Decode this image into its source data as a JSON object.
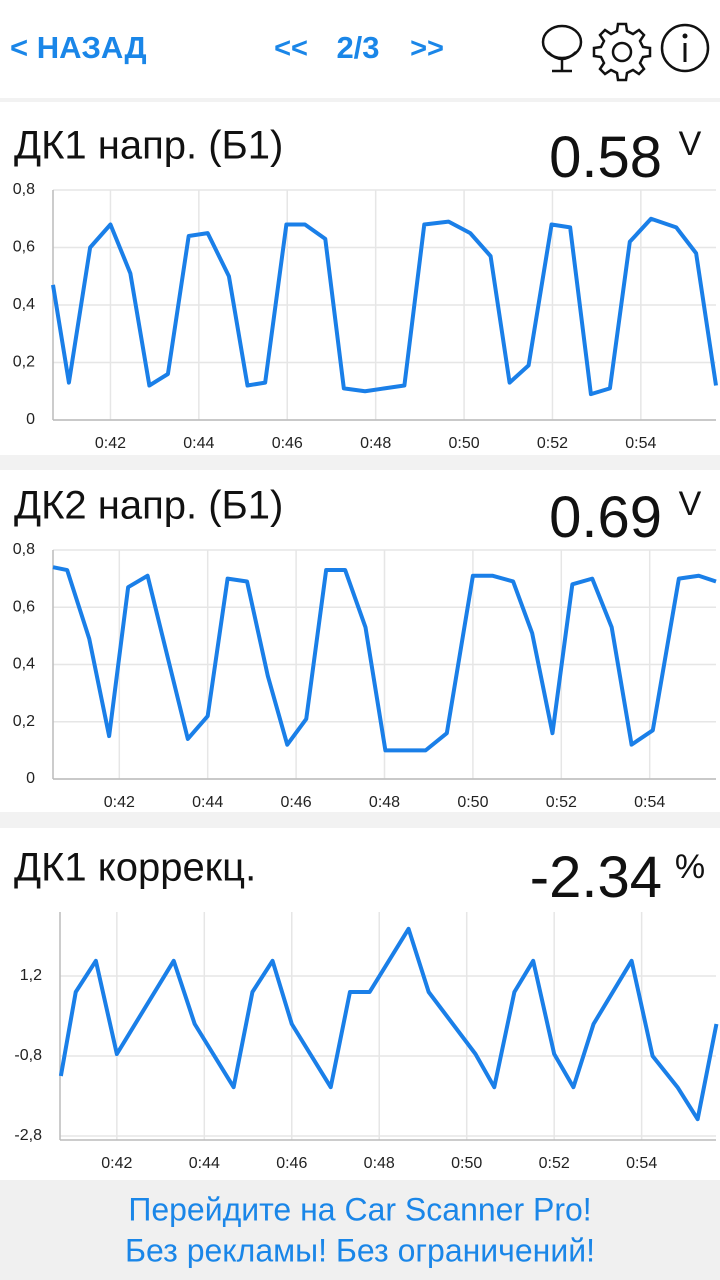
{
  "header": {
    "back": "< НАЗАД",
    "prev": "<<",
    "page": "2/3",
    "next": ">>"
  },
  "chart_data": [
    {
      "type": "line",
      "title": "ДК1 напр. (Б1)",
      "current_value": 0.58,
      "unit": "V",
      "x": [
        40.7,
        41.06,
        41.54,
        42,
        42.45,
        42.88,
        43.3,
        43.77,
        44.2,
        44.68,
        45.1,
        45.5,
        45.98,
        46.4,
        46.86,
        47.28,
        47.76,
        48.2,
        48.65,
        49.1,
        49.65,
        50.14,
        50.6,
        51.03,
        51.46,
        51.98,
        52.4,
        52.87,
        53.3,
        53.75,
        54.23,
        54.8,
        55.25,
        55.7
      ],
      "series": [
        {
          "color": "#1a7fe8",
          "values": [
            0.47,
            0.13,
            0.6,
            0.68,
            0.51,
            0.12,
            0.16,
            0.64,
            0.65,
            0.5,
            0.12,
            0.13,
            0.68,
            0.68,
            0.63,
            0.11,
            0.1,
            0.11,
            0.12,
            0.68,
            0.69,
            0.65,
            0.57,
            0.13,
            0.19,
            0.68,
            0.67,
            0.09,
            0.11,
            0.62,
            0.7,
            0.67,
            0.58,
            0.12
          ]
        }
      ],
      "xlim": [
        40.7,
        55.7
      ],
      "xticks": [
        {
          "value": 42,
          "label": "0:42"
        },
        {
          "value": 44,
          "label": "0:44"
        },
        {
          "value": 46,
          "label": "0:46"
        },
        {
          "value": 48,
          "label": "0:48"
        },
        {
          "value": 50,
          "label": "0:50"
        },
        {
          "value": 52,
          "label": "0:52"
        },
        {
          "value": 54,
          "label": "0:54"
        }
      ],
      "ylim": [
        0,
        0.8
      ],
      "yticks": [
        0,
        {
          "value": 0.2,
          "label": "0,2"
        },
        {
          "value": 0.4,
          "label": "0,4"
        },
        {
          "value": 0.6,
          "label": "0,6"
        },
        {
          "value": 0.8,
          "label": "0,8"
        }
      ],
      "grid": true
    },
    {
      "type": "line",
      "title": "ДК2 напр. (Б1)",
      "current_value": 0.69,
      "unit": "V",
      "x": [
        40.5,
        40.82,
        41.32,
        41.77,
        42.2,
        42.64,
        43.55,
        44,
        44.45,
        44.89,
        45.36,
        45.8,
        46.23,
        46.68,
        47.11,
        47.57,
        48.02,
        48.93,
        49.41,
        50,
        50.45,
        50.91,
        51.34,
        51.8,
        52.25,
        52.7,
        53.14,
        53.59,
        54.07,
        54.66,
        55.11,
        55.5
      ],
      "series": [
        {
          "color": "#1a7fe8",
          "values": [
            0.74,
            0.73,
            0.49,
            0.15,
            0.67,
            0.71,
            0.14,
            0.22,
            0.7,
            0.69,
            0.36,
            0.12,
            0.21,
            0.73,
            0.73,
            0.53,
            0.1,
            0.1,
            0.16,
            0.71,
            0.71,
            0.69,
            0.51,
            0.16,
            0.68,
            0.7,
            0.53,
            0.12,
            0.17,
            0.7,
            0.71,
            0.69
          ]
        }
      ],
      "xlim": [
        40.5,
        55.5
      ],
      "xticks": [
        {
          "value": 42,
          "label": "0:42"
        },
        {
          "value": 44,
          "label": "0:44"
        },
        {
          "value": 46,
          "label": "0:46"
        },
        {
          "value": 48,
          "label": "0:48"
        },
        {
          "value": 50,
          "label": "0:50"
        },
        {
          "value": 52,
          "label": "0:52"
        },
        {
          "value": 54,
          "label": "0:54"
        }
      ],
      "ylim": [
        0,
        0.8
      ],
      "yticks": [
        0,
        {
          "value": 0.2,
          "label": "0,2"
        },
        {
          "value": 0.4,
          "label": "0,4"
        },
        {
          "value": 0.6,
          "label": "0,6"
        },
        {
          "value": 0.8,
          "label": "0,8"
        }
      ],
      "grid": true
    },
    {
      "type": "line",
      "title": "ДК1 коррекц.",
      "current_value": -2.34,
      "unit": "%",
      "x": [
        40.72,
        41.06,
        41.52,
        42,
        43.3,
        43.78,
        44.67,
        45.1,
        45.56,
        46,
        46.89,
        47.33,
        47.78,
        48.67,
        49.13,
        50.2,
        50.63,
        51.09,
        51.52,
        52,
        52.44,
        52.9,
        53.77,
        54.25,
        54.82,
        55.28,
        55.71
      ],
      "series": [
        {
          "color": "#1a7fe8",
          "values": [
            -1.3,
            0.8,
            1.58,
            -0.75,
            1.58,
            0,
            -1.58,
            0.8,
            1.58,
            0,
            -1.58,
            0.8,
            0.8,
            2.38,
            0.8,
            -0.75,
            -1.58,
            0.8,
            1.58,
            -0.75,
            -1.58,
            0,
            1.58,
            -0.8,
            -1.58,
            -2.38,
            0
          ]
        }
      ],
      "xlim": [
        40.7,
        55.7
      ],
      "xticks": [
        {
          "value": 42,
          "label": "0:42"
        },
        {
          "value": 44,
          "label": "0:44"
        },
        {
          "value": 46,
          "label": "0:46"
        },
        {
          "value": 48,
          "label": "0:48"
        },
        {
          "value": 50,
          "label": "0:50"
        },
        {
          "value": 52,
          "label": "0:52"
        },
        {
          "value": 54,
          "label": "0:54"
        }
      ],
      "ylim": [
        -2.9,
        2.8
      ],
      "yticks": [
        {
          "value": -2.8,
          "label": "-2,8"
        },
        {
          "value": -0.8,
          "label": "-0,8"
        },
        {
          "value": 1.2,
          "label": "1,2"
        }
      ],
      "grid": true
    }
  ],
  "footer": {
    "line1": "Перейдите на Car Scanner Pro!",
    "line2": "Без рекламы! Без ограничений!"
  }
}
